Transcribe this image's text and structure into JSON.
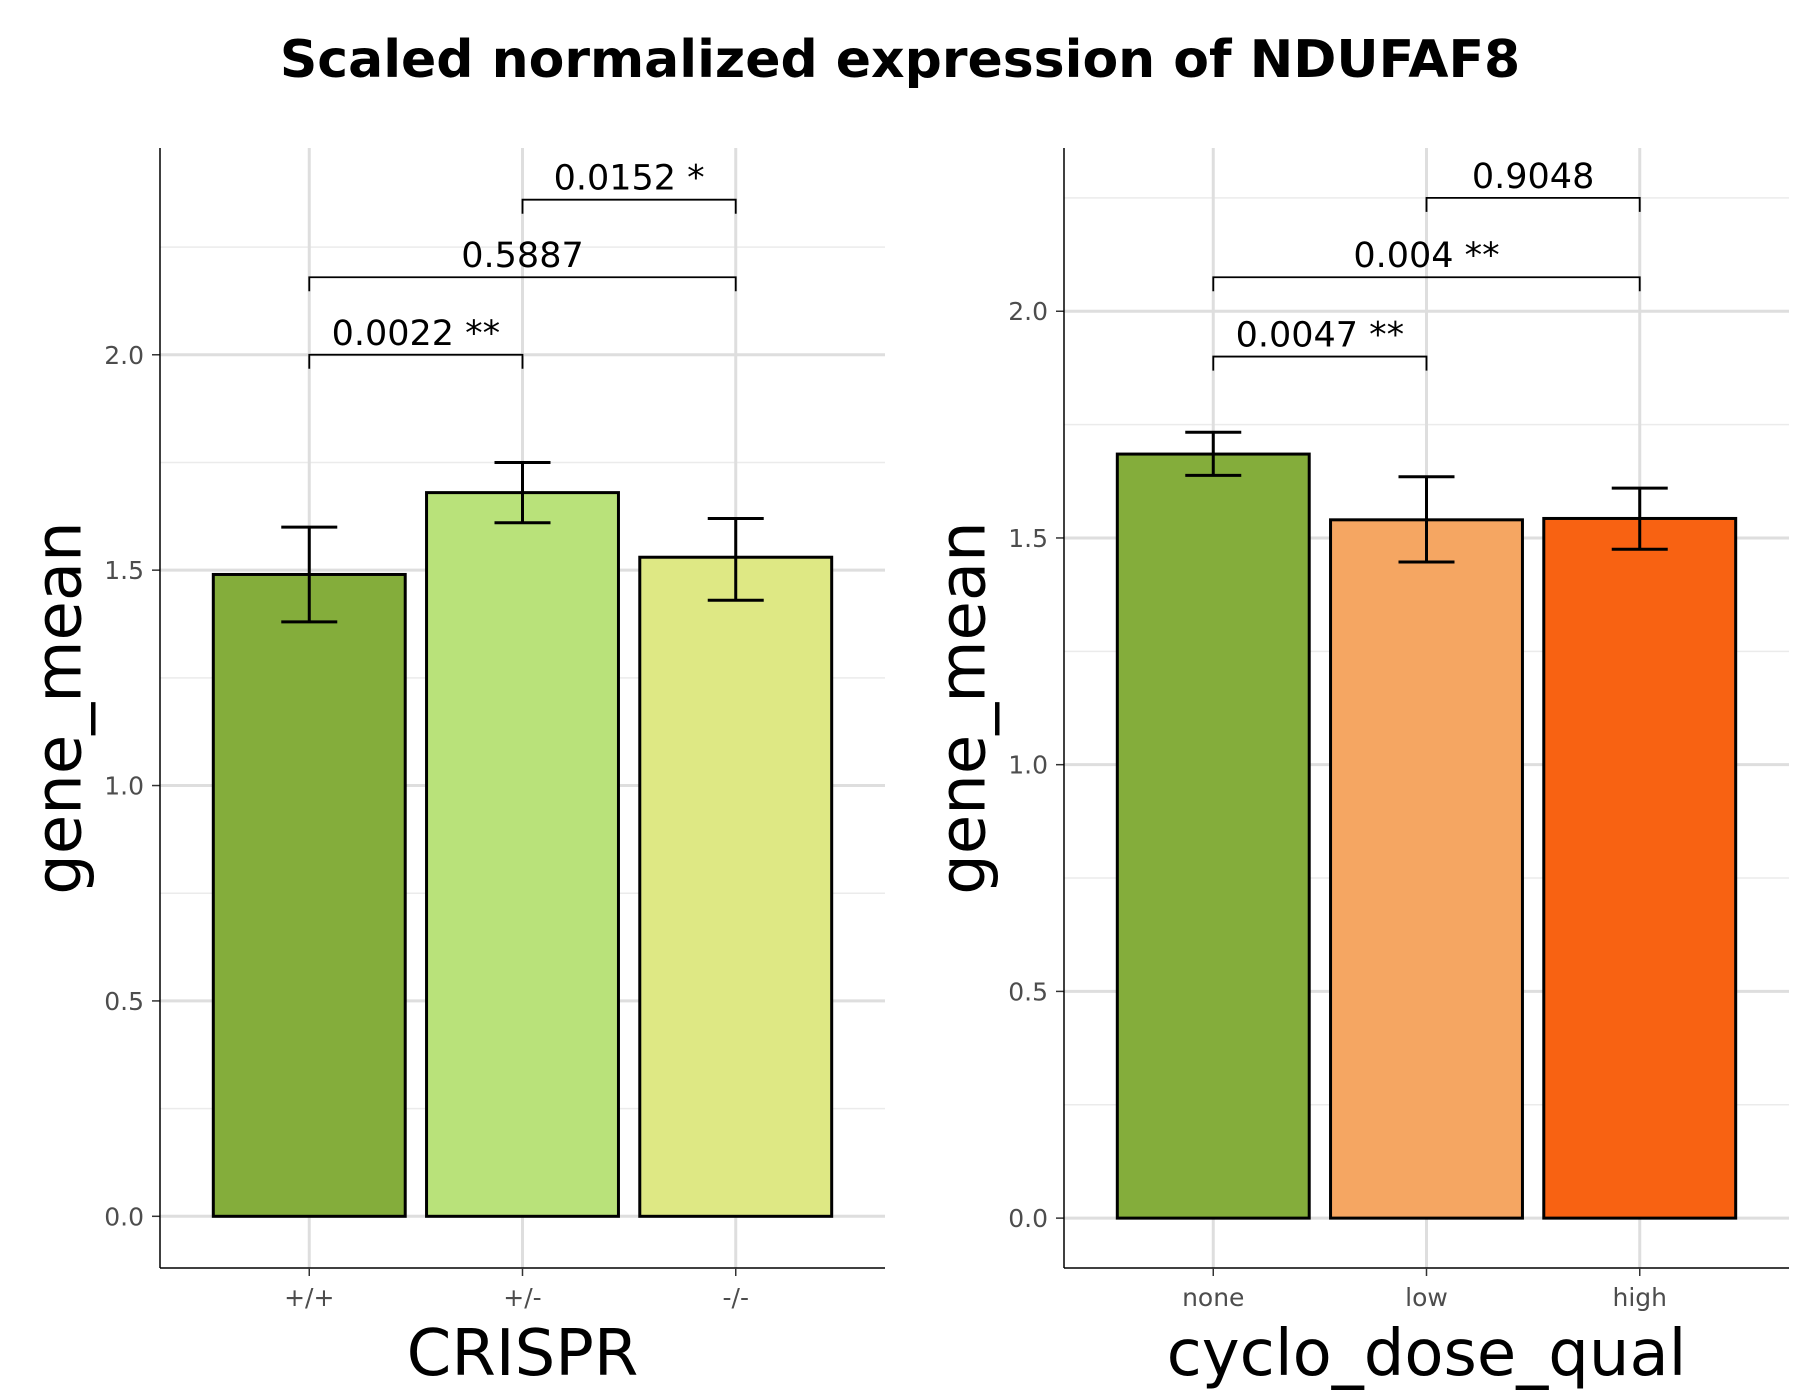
{
  "title": "Scaled normalized expression of NDUFAF8",
  "chart_data": [
    {
      "type": "bar",
      "xlabel": "CRISPR",
      "ylabel": "gene_mean",
      "categories": [
        "+/+",
        "+/-",
        "-/-"
      ],
      "values": [
        1.49,
        1.68,
        1.53
      ],
      "error": [
        [
          1.38,
          1.6
        ],
        [
          1.61,
          1.75
        ],
        [
          1.43,
          1.62
        ]
      ],
      "colors": [
        "#84ad3b",
        "#b9e27a",
        "#dee884"
      ],
      "yticks": [
        "0.0",
        "0.5",
        "1.0",
        "1.5",
        "2.0"
      ],
      "ylim": [
        -0.12,
        2.48
      ],
      "grid": true,
      "comparisons": [
        {
          "from": 0,
          "to": 1,
          "y": 2.0,
          "label": "0.0022 **"
        },
        {
          "from": 0,
          "to": 2,
          "y": 2.18,
          "label": "0.5887"
        },
        {
          "from": 1,
          "to": 2,
          "y": 2.36,
          "label": "0.0152 *"
        }
      ]
    },
    {
      "type": "bar",
      "xlabel": "cyclo_dose_qual",
      "ylabel": "gene_mean",
      "categories": [
        "none",
        "low",
        "high"
      ],
      "values": [
        1.685,
        1.54,
        1.543
      ],
      "error": [
        [
          1.638,
          1.733
        ],
        [
          1.447,
          1.635
        ],
        [
          1.475,
          1.61
        ]
      ],
      "colors": [
        "#84ad3b",
        "#f5a662",
        "#f86212"
      ],
      "yticks": [
        "0.0",
        "0.5",
        "1.0",
        "1.5",
        "2.0"
      ],
      "ylim": [
        -0.11,
        2.36
      ],
      "grid": true,
      "comparisons": [
        {
          "from": 0,
          "to": 1,
          "y": 1.9,
          "label": "0.0047 **"
        },
        {
          "from": 0,
          "to": 2,
          "y": 2.075,
          "label": "0.004 **"
        },
        {
          "from": 1,
          "to": 2,
          "y": 2.25,
          "label": "0.9048"
        }
      ]
    }
  ]
}
